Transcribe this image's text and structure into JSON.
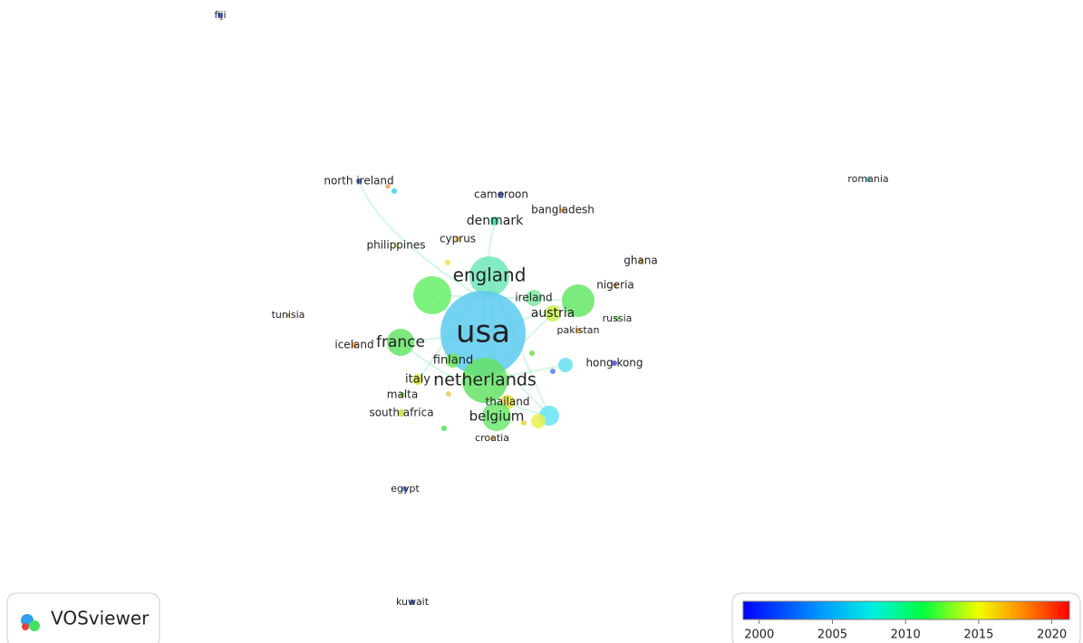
{
  "logo": "VOSviewer",
  "nodes": [
    {
      "label": "fiji",
      "color": "#3a4fe0"
    },
    {
      "label": "north ireland",
      "color": "#3a5ae0"
    },
    {
      "label": "romania",
      "color": "#30c0c8"
    },
    {
      "label": "cameroon",
      "color": "#3a5ae0"
    },
    {
      "label": "bangladesh",
      "color": "#f0a030"
    },
    {
      "label": "denmark",
      "color": "#40e0b0"
    },
    {
      "label": "philippines",
      "color": "#e8e040"
    },
    {
      "label": "cyprus",
      "color": "#f0c040"
    },
    {
      "label": "ghana",
      "color": "#f0a030"
    },
    {
      "label": "england",
      "color": "#70e8b8"
    },
    {
      "label": "nigeria",
      "color": "#f09040"
    },
    {
      "label": "ireland",
      "color": "#80e8a0"
    },
    {
      "label": "tunisia",
      "color": "#f09040"
    },
    {
      "label": "austria",
      "color": "#c8ee50"
    },
    {
      "label": "russia",
      "color": "#80e070"
    },
    {
      "label": "usa",
      "color": "#5ccaf0"
    },
    {
      "label": "pakistan",
      "color": "#f0b040"
    },
    {
      "label": "iceland",
      "color": "#f0a040"
    },
    {
      "label": "france",
      "color": "#66e466"
    },
    {
      "label": "finland",
      "color": "#70e860"
    },
    {
      "label": "hong kong",
      "color": "#5050e0"
    },
    {
      "label": "italy",
      "color": "#d8e840"
    },
    {
      "label": "netherlands",
      "color": "#66e266"
    },
    {
      "label": "malta",
      "color": "#90e050"
    },
    {
      "label": "thailand",
      "color": "#e8e040"
    },
    {
      "label": "south africa",
      "color": "#c0e040"
    },
    {
      "label": "belgium",
      "color": "#70e870"
    },
    {
      "label": "croatia",
      "color": "#f0a040"
    },
    {
      "label": "egypt",
      "color": "#5070e0"
    },
    {
      "label": "kuwait",
      "color": "#4060e0"
    }
  ],
  "legend": {
    "colorbar_range": [
      1998.9,
      2021.2
    ],
    "ticks": [
      2000,
      2005,
      2010,
      2015,
      2020
    ]
  }
}
